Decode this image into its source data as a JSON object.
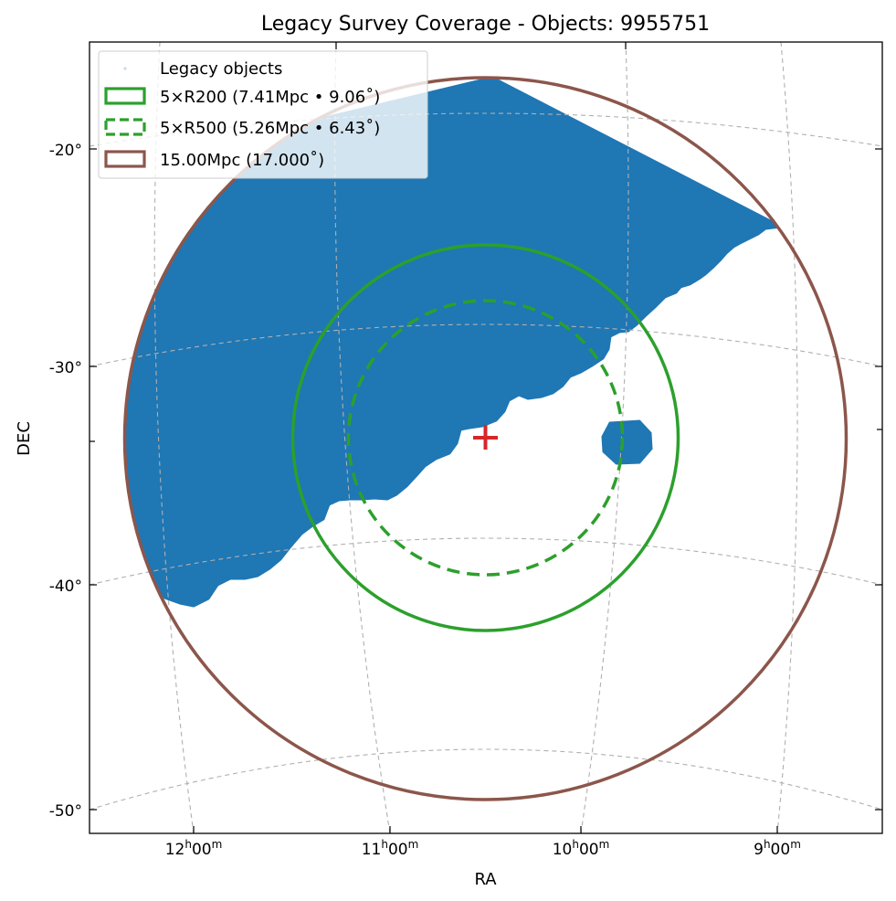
{
  "chart_data": {
    "type": "scatter",
    "title": "Legacy Survey Coverage - Objects: 9955751",
    "xlabel": "RA",
    "ylabel": "DEC",
    "projection": "gnomonic sky projection",
    "center": {
      "ra_hours": 10.5,
      "dec_deg": -33.3
    },
    "x_ticks": [
      {
        "hours": 12,
        "label_h": "12",
        "label_m": "00"
      },
      {
        "hours": 11,
        "label_h": "11",
        "label_m": "00"
      },
      {
        "hours": 10,
        "label_h": "10",
        "label_m": "00"
      },
      {
        "hours": 9,
        "label_h": "9",
        "label_m": "00"
      }
    ],
    "y_ticks": [
      {
        "dec": -20,
        "label": "-20°"
      },
      {
        "dec": -30,
        "label": "-30°"
      },
      {
        "dec": -40,
        "label": "-40°"
      },
      {
        "dec": -50,
        "label": "-50°"
      }
    ],
    "grid": true,
    "legend_position": "top-left",
    "colors": {
      "objects": "#1f77b4",
      "r200": "#2ca02c",
      "r500": "#2ca02c",
      "outer": "#8c564b",
      "center_marker": "#d62728",
      "grid": "#b0b0b0"
    },
    "series": [
      {
        "name": "Legacy objects",
        "marker": "point",
        "count": 9955751
      },
      {
        "name": "5×R200 (7.41Mpc • 9.06˚)",
        "radius_deg": 9.06,
        "mpc": 7.41,
        "style": "solid"
      },
      {
        "name": "5×R500 (5.26Mpc • 6.43˚)",
        "radius_deg": 6.43,
        "mpc": 5.26,
        "style": "dashed"
      },
      {
        "name": "15.00Mpc (17.000˚)",
        "radius_deg": 17.0,
        "mpc": 15.0,
        "style": "solid"
      }
    ],
    "center_marker": {
      "ra_hours": 10.5,
      "dec_deg": -33.3,
      "symbol": "plus"
    }
  }
}
